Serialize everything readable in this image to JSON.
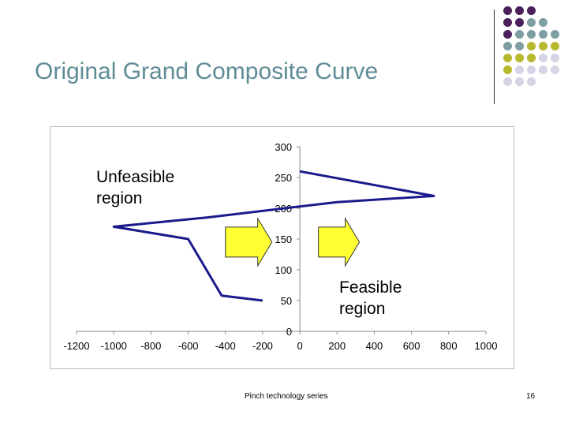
{
  "slide": {
    "title": "Original Grand Composite Curve",
    "footer": "Pinch technology series",
    "page_number": "16"
  },
  "labels": {
    "unfeasible": "Unfeasible\nregion",
    "feasible": "Feasible\nregion"
  },
  "colors": {
    "title": "#5f8c96",
    "curve": "#1a1a8c",
    "arrow_fill": "#ffff33",
    "dot_purple": "#4a1f5c",
    "dot_teal": "#7f9ea3",
    "dot_olive": "#b8b82e",
    "dot_lavender": "#d4d4e6"
  },
  "decor": {
    "dot_grid": [
      [
        "purple",
        "purple",
        "purple",
        null,
        null
      ],
      [
        "purple",
        "purple",
        "teal",
        "teal",
        null
      ],
      [
        "purple",
        "teal",
        "teal",
        "teal",
        "teal"
      ],
      [
        "teal",
        "teal",
        "olive",
        "olive",
        "olive"
      ],
      [
        "olive",
        "olive",
        "olive",
        "lavender",
        "lavender"
      ],
      [
        "olive",
        "lavender",
        "lavender",
        "lavender",
        "lavender"
      ],
      [
        "lavender",
        "lavender",
        "lavender",
        null,
        null
      ]
    ]
  },
  "chart_data": {
    "type": "line",
    "series": [
      {
        "points": [
          [
            -200,
            50
          ],
          [
            -420,
            58
          ],
          [
            -600,
            150
          ],
          [
            -1000,
            170
          ],
          [
            -500,
            185
          ],
          [
            200,
            210
          ],
          [
            720,
            220
          ],
          [
            0,
            260
          ]
        ]
      }
    ],
    "xlim": [
      -1200,
      1000
    ],
    "ylim": [
      0,
      300
    ],
    "x_ticks": [
      -1200,
      -1000,
      -800,
      -600,
      -400,
      -200,
      0,
      200,
      400,
      600,
      800,
      1000
    ],
    "y_ticks": [
      0,
      50,
      100,
      150,
      200,
      250,
      300
    ],
    "grid": false,
    "arrows": [
      {
        "direction": "right",
        "x_from": -400,
        "x_to": -150,
        "y_center": 145
      },
      {
        "direction": "right",
        "x_from": 100,
        "x_to": 320,
        "y_center": 145
      }
    ]
  }
}
